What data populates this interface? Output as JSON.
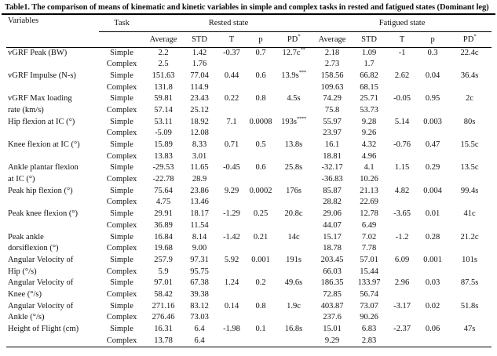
{
  "title": "Table1. The comparison of means of kinematic and kinetic variables in simple and complex tasks in rested and fatigued states (Dominant leg)",
  "header": {
    "variables": "Variables",
    "task": "Task",
    "rested": "Rested state",
    "fatigued": "Fatigued state",
    "sub": {
      "average": "Average",
      "std": "STD",
      "t": "T",
      "p": "p",
      "pd": "PD",
      "pd_sup": "*"
    }
  },
  "rows": [
    {
      "variable": "vGRF Peak (BW)",
      "variable2": "",
      "simple": {
        "task": "Simple",
        "rested": {
          "avg": "2.2",
          "std": "1.42",
          "t": "-0.37",
          "p": "0.7",
          "pd": "12.7c",
          "pd_sup": "**"
        },
        "fatigued": {
          "avg": "2.18",
          "std": "1.09",
          "t": "-1",
          "p": "0.3",
          "pd": "22.4c",
          "pd_sup": ""
        }
      },
      "complex": {
        "task": "Complex",
        "rested": {
          "avg": "2.5",
          "std": "1.76"
        },
        "fatigued": {
          "avg": "2.73",
          "std": "1.7"
        }
      }
    },
    {
      "variable": "vGRF Impulse (N-s)",
      "variable2": "",
      "simple": {
        "task": "Simple",
        "rested": {
          "avg": "151.63",
          "std": "77.04",
          "t": "0.44",
          "p": "0.6",
          "pd": "13.9s",
          "pd_sup": "***"
        },
        "fatigued": {
          "avg": "158.56",
          "std": "66.82",
          "t": "2.62",
          "p": "0.04",
          "pd": "36.4s",
          "pd_sup": ""
        }
      },
      "complex": {
        "task": "Complex",
        "rested": {
          "avg": "131.8",
          "std": "114.9"
        },
        "fatigued": {
          "avg": "109.63",
          "std": "68.15"
        }
      }
    },
    {
      "variable": "vGRF Max loading",
      "variable2": "rate (km/s)",
      "simple": {
        "task": "Simple",
        "rested": {
          "avg": "59.81",
          "std": "23.43",
          "t": "0.22",
          "p": "0.8",
          "pd": "4.5s",
          "pd_sup": ""
        },
        "fatigued": {
          "avg": "74.29",
          "std": "25.71",
          "t": "-0.05",
          "p": "0.95",
          "pd": "2c",
          "pd_sup": ""
        }
      },
      "complex": {
        "task": "Complex",
        "rested": {
          "avg": "57.14",
          "std": "25.12"
        },
        "fatigued": {
          "avg": "75.8",
          "std": "53.73"
        }
      }
    },
    {
      "variable": "Hip flexion at IC (°)",
      "variable2": "",
      "simple": {
        "task": "Simple",
        "rested": {
          "avg": "53.11",
          "std": "18.92",
          "t": "7.1",
          "p": "0.0008",
          "pd": "193s",
          "pd_sup": "****"
        },
        "fatigued": {
          "avg": "55.97",
          "std": "9.28",
          "t": "5.14",
          "p": "0.003",
          "pd": "80s",
          "pd_sup": ""
        }
      },
      "complex": {
        "task": "Complex",
        "rested": {
          "avg": "-5.09",
          "std": "12.08"
        },
        "fatigued": {
          "avg": "23.97",
          "std": "9.26"
        }
      }
    },
    {
      "variable": "Knee flexion at IC (°)",
      "variable2": "",
      "simple": {
        "task": "Simple",
        "rested": {
          "avg": "15.89",
          "std": "8.33",
          "t": "0.71",
          "p": "0.5",
          "pd": "13.8s",
          "pd_sup": ""
        },
        "fatigued": {
          "avg": "16.1",
          "std": "4.32",
          "t": "-0.76",
          "p": "0.47",
          "pd": "15.5c",
          "pd_sup": ""
        }
      },
      "complex": {
        "task": "Complex",
        "rested": {
          "avg": "13.83",
          "std": "3.01"
        },
        "fatigued": {
          "avg": "18.81",
          "std": "4.96"
        }
      }
    },
    {
      "variable": "Ankle plantar flexion",
      "variable2": "at IC (°)",
      "simple": {
        "task": "Simple",
        "rested": {
          "avg": "-29.53",
          "std": "11.65",
          "t": "-0.45",
          "p": "0.6",
          "pd": "25.8s",
          "pd_sup": ""
        },
        "fatigued": {
          "avg": "-32.17",
          "std": "4.1",
          "t": "1.15",
          "p": "0.29",
          "pd": "13.5c",
          "pd_sup": ""
        }
      },
      "complex": {
        "task": "Complex",
        "rested": {
          "avg": "-22.78",
          "std": "28.9"
        },
        "fatigued": {
          "avg": "-36.83",
          "std": "10.26"
        }
      }
    },
    {
      "variable": "Peak hip flexion (°)",
      "variable2": "",
      "simple": {
        "task": "Simple",
        "rested": {
          "avg": "75.64",
          "std": "23.86",
          "t": "9.29",
          "p": "0.0002",
          "pd": "176s",
          "pd_sup": ""
        },
        "fatigued": {
          "avg": "85.87",
          "std": "21.13",
          "t": "4.82",
          "p": "0.004",
          "pd": "99.4s",
          "pd_sup": ""
        }
      },
      "complex": {
        "task": "Complex",
        "rested": {
          "avg": "4.75",
          "std": "13.46"
        },
        "fatigued": {
          "avg": "28.82",
          "std": "22.69"
        }
      }
    },
    {
      "variable": "Peak knee flexion (°)",
      "variable2": "",
      "simple": {
        "task": "Simple",
        "rested": {
          "avg": "29.91",
          "std": "18.17",
          "t": "-1.29",
          "p": "0.25",
          "pd": "20.8c",
          "pd_sup": ""
        },
        "fatigued": {
          "avg": "29.06",
          "std": "12.78",
          "t": "-3.65",
          "p": "0.01",
          "pd": "41c",
          "pd_sup": ""
        }
      },
      "complex": {
        "task": "Complex",
        "rested": {
          "avg": "36.89",
          "std": "11.54"
        },
        "fatigued": {
          "avg": "44.07",
          "std": "6.49"
        }
      }
    },
    {
      "variable": "Peak ankle",
      "variable2": "dorsiflexion (°)",
      "simple": {
        "task": "Simple",
        "rested": {
          "avg": "16.84",
          "std": "8.14",
          "t": "-1.42",
          "p": "0.21",
          "pd": "14c",
          "pd_sup": ""
        },
        "fatigued": {
          "avg": "15.17",
          "std": "7.02",
          "t": "-1.2",
          "p": "0.28",
          "pd": "21.2c",
          "pd_sup": ""
        }
      },
      "complex": {
        "task": "Complex",
        "rested": {
          "avg": "19.68",
          "std": "9.00"
        },
        "fatigued": {
          "avg": "18.78",
          "std": "7.78"
        }
      }
    },
    {
      "variable": "Angular Velocity of",
      "variable2": "Hip (°/s)",
      "simple": {
        "task": "Simple",
        "rested": {
          "avg": "257.9",
          "std": "97.31",
          "t": "5.92",
          "p": "0.001",
          "pd": "191s",
          "pd_sup": ""
        },
        "fatigued": {
          "avg": "203.45",
          "std": "57.01",
          "t": "6.09",
          "p": "0.001",
          "pd": "101s",
          "pd_sup": ""
        }
      },
      "complex": {
        "task": "Complex",
        "rested": {
          "avg": "5.9",
          "std": "95.75"
        },
        "fatigued": {
          "avg": "66.03",
          "std": "15.44"
        }
      }
    },
    {
      "variable": "Angular Velocity of",
      "variable2": "Knee (°/s)",
      "simple": {
        "task": "Simple",
        "rested": {
          "avg": "97.01",
          "std": "67.38",
          "t": "1.24",
          "p": "0.2",
          "pd": "49.6s",
          "pd_sup": ""
        },
        "fatigued": {
          "avg": "186.35",
          "std": "133.97",
          "t": "2.96",
          "p": "0.03",
          "pd": "87.5s",
          "pd_sup": ""
        }
      },
      "complex": {
        "task": "Complex",
        "rested": {
          "avg": "58.42",
          "std": "39.38"
        },
        "fatigued": {
          "avg": "72.85",
          "std": "56.74"
        }
      }
    },
    {
      "variable": "Angular Velocity of",
      "variable2": "Ankle (°/s)",
      "simple": {
        "task": "Simple",
        "rested": {
          "avg": "271.16",
          "std": "83.12",
          "t": "0.14",
          "p": "0.8",
          "pd": "1.9c",
          "pd_sup": ""
        },
        "fatigued": {
          "avg": "403.87",
          "std": "73.07",
          "t": "-3.17",
          "p": "0.02",
          "pd": "51.8s",
          "pd_sup": ""
        }
      },
      "complex": {
        "task": "Complex",
        "rested": {
          "avg": "276.46",
          "std": "73.03"
        },
        "fatigued": {
          "avg": "237.6",
          "std": "90.26"
        }
      }
    },
    {
      "variable": "Height of Flight (cm)",
      "variable2": "",
      "simple": {
        "task": "Simple",
        "rested": {
          "avg": "16.31",
          "std": "6.4",
          "t": "-1.98",
          "p": "0.1",
          "pd": "16.8s",
          "pd_sup": ""
        },
        "fatigued": {
          "avg": "15.01",
          "std": "6.83",
          "t": "-2.37",
          "p": "0.06",
          "pd": "47s",
          "pd_sup": ""
        }
      },
      "complex": {
        "task": "Complex",
        "rested": {
          "avg": "13.78",
          "std": "6.4"
        },
        "fatigued": {
          "avg": "9.29",
          "std": "2.83"
        }
      }
    }
  ]
}
